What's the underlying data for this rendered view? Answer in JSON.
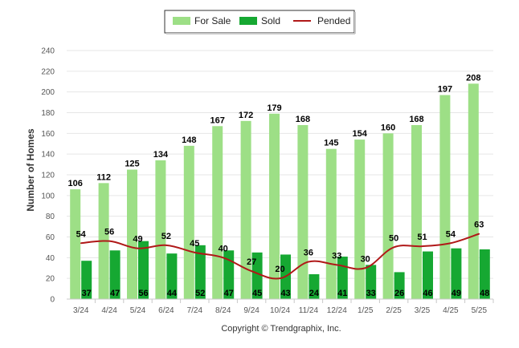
{
  "chart_data": {
    "type": "bar",
    "categories": [
      "3/24",
      "4/24",
      "5/24",
      "6/24",
      "7/24",
      "8/24",
      "9/24",
      "10/24",
      "11/24",
      "12/24",
      "1/25",
      "2/25",
      "3/25",
      "4/25",
      "5/25"
    ],
    "series": [
      {
        "name": "For Sale",
        "type": "bar",
        "color": "#9ddf86",
        "values": [
          106,
          112,
          125,
          134,
          148,
          167,
          172,
          179,
          168,
          145,
          154,
          160,
          168,
          197,
          208
        ]
      },
      {
        "name": "Sold",
        "type": "bar",
        "color": "#16a832",
        "values": [
          37,
          47,
          56,
          44,
          52,
          47,
          45,
          43,
          24,
          41,
          33,
          26,
          46,
          49,
          48
        ]
      },
      {
        "name": "Pended",
        "type": "line",
        "color": "#b01818",
        "values": [
          54,
          56,
          49,
          52,
          45,
          40,
          27,
          20,
          36,
          33,
          30,
          50,
          51,
          54,
          63
        ]
      }
    ],
    "ylabel": "Number of Homes",
    "ylim": [
      0,
      240
    ],
    "yticks": [
      0,
      20,
      40,
      60,
      80,
      100,
      120,
      140,
      160,
      180,
      200,
      220,
      240
    ],
    "grid": true,
    "legend_position": "top-center",
    "credit": "Copyright © Trendgraphix, Inc."
  }
}
